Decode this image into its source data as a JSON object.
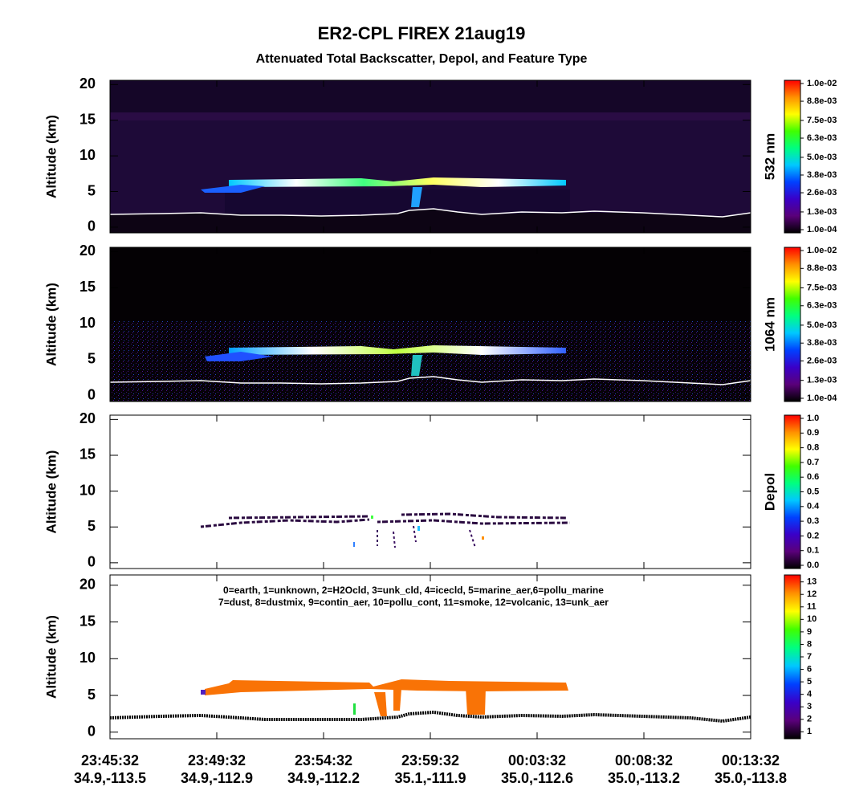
{
  "title": "ER2-CPL FIREX 21aug19",
  "subtitle": "Attenuated Total Backscatter, Depol, and Feature Type",
  "x_labels": [
    "23:45:32",
    "23:49:32",
    "23:54:32",
    "23:59:32",
    "00:03:32",
    "00:08:32",
    "00:13:32"
  ],
  "x_sublabels": [
    "34.9,-113.5",
    "34.9,-112.9",
    "34.9,-112.2",
    "35.1,-111.9",
    "35.0,-112.6",
    "35.0,-113.2",
    "35.0,-113.8"
  ],
  "chart_data": [
    {
      "type": "heatmap",
      "ylabel": "Altitude (km)",
      "ylim": [
        -0.8,
        20.6
      ],
      "yticks": [
        0,
        5,
        10,
        15,
        20
      ],
      "colorbar_label": "532 nm",
      "clim": [
        0.0001,
        0.01
      ],
      "colorbar_ticks": [
        {
          "value": 0.0001,
          "label": "1.0e-04"
        },
        {
          "value": 0.0013,
          "label": "1.3e-03"
        },
        {
          "value": 0.0026,
          "label": "2.6e-03"
        },
        {
          "value": 0.0038,
          "label": "3.8e-03"
        },
        {
          "value": 0.005,
          "label": "5.0e-03"
        },
        {
          "value": 0.0063,
          "label": "6.3e-03"
        },
        {
          "value": 0.0075,
          "label": "7.5e-03"
        },
        {
          "value": 0.0088,
          "label": "8.8e-03"
        },
        {
          "value": 0.01,
          "label": "1.0e-02"
        }
      ],
      "colormap": [
        "#000000",
        "#5a007a",
        "#3a00c8",
        "#0040ff",
        "#00c8ff",
        "#00ff80",
        "#40ff00",
        "#ffff00",
        "#ff9000",
        "#ff0000"
      ]
    },
    {
      "type": "heatmap",
      "ylabel": "Altitude (km)",
      "ylim": [
        -0.8,
        20.6
      ],
      "yticks": [
        0,
        5,
        10,
        15,
        20
      ],
      "colorbar_label": "1064 nm",
      "clim": [
        0.0001,
        0.01
      ],
      "colorbar_ticks": [
        {
          "value": 0.0001,
          "label": "1.0e-04"
        },
        {
          "value": 0.0013,
          "label": "1.3e-03"
        },
        {
          "value": 0.0026,
          "label": "2.6e-03"
        },
        {
          "value": 0.0038,
          "label": "3.8e-03"
        },
        {
          "value": 0.005,
          "label": "5.0e-03"
        },
        {
          "value": 0.0063,
          "label": "6.3e-03"
        },
        {
          "value": 0.0075,
          "label": "7.5e-03"
        },
        {
          "value": 0.0088,
          "label": "8.8e-03"
        },
        {
          "value": 0.01,
          "label": "1.0e-02"
        }
      ],
      "colormap": [
        "#000000",
        "#5a007a",
        "#3a00c8",
        "#0040ff",
        "#00c8ff",
        "#00ff80",
        "#40ff00",
        "#ffff00",
        "#ff9000",
        "#ff0000"
      ]
    },
    {
      "type": "heatmap",
      "ylabel": "Altitude (km)",
      "ylim": [
        -0.8,
        20.6
      ],
      "yticks": [
        0,
        5,
        10,
        15,
        20
      ],
      "colorbar_label": "Depol",
      "clim": [
        0,
        1
      ],
      "colorbar_ticks": [
        {
          "value": 0,
          "label": "0.0"
        },
        0.1,
        0.2,
        0.3,
        0.4,
        0.5,
        0.6,
        0.7,
        0.8,
        0.9,
        {
          "value": 1,
          "label": "1.0"
        }
      ],
      "colormap": [
        "#000000",
        "#5a007a",
        "#3a00c8",
        "#0040ff",
        "#00c8ff",
        "#00ff80",
        "#40ff00",
        "#ffff00",
        "#ff9000",
        "#ff0000"
      ]
    },
    {
      "type": "heatmap",
      "ylabel": "Altitude (km)",
      "ylim": [
        -0.9,
        21.4
      ],
      "yticks": [
        0,
        5,
        10,
        15,
        20
      ],
      "clim": [
        0.7,
        13.3
      ],
      "colorbar_ticks": [
        1,
        2,
        3,
        4,
        5,
        6,
        7,
        8,
        9,
        10,
        11,
        12,
        13
      ],
      "colormap": [
        "#000000",
        "#5a007a",
        "#3a00c8",
        "#0040ff",
        "#00c8ff",
        "#00ff80",
        "#40ff00",
        "#ffff00",
        "#ff9000",
        "#ff0000"
      ],
      "annotations": [
        "0=earth, 1=unknown, 2=H2Ocld, 3=unk_cld, 4=icecld, 5=marine_aer,6=pollu_marine",
        "7=dust, 8=dustmix, 9=contin_aer, 10=pollu_cont, 11=smoke, 12=volcanic, 13=unk_aer"
      ]
    }
  ]
}
